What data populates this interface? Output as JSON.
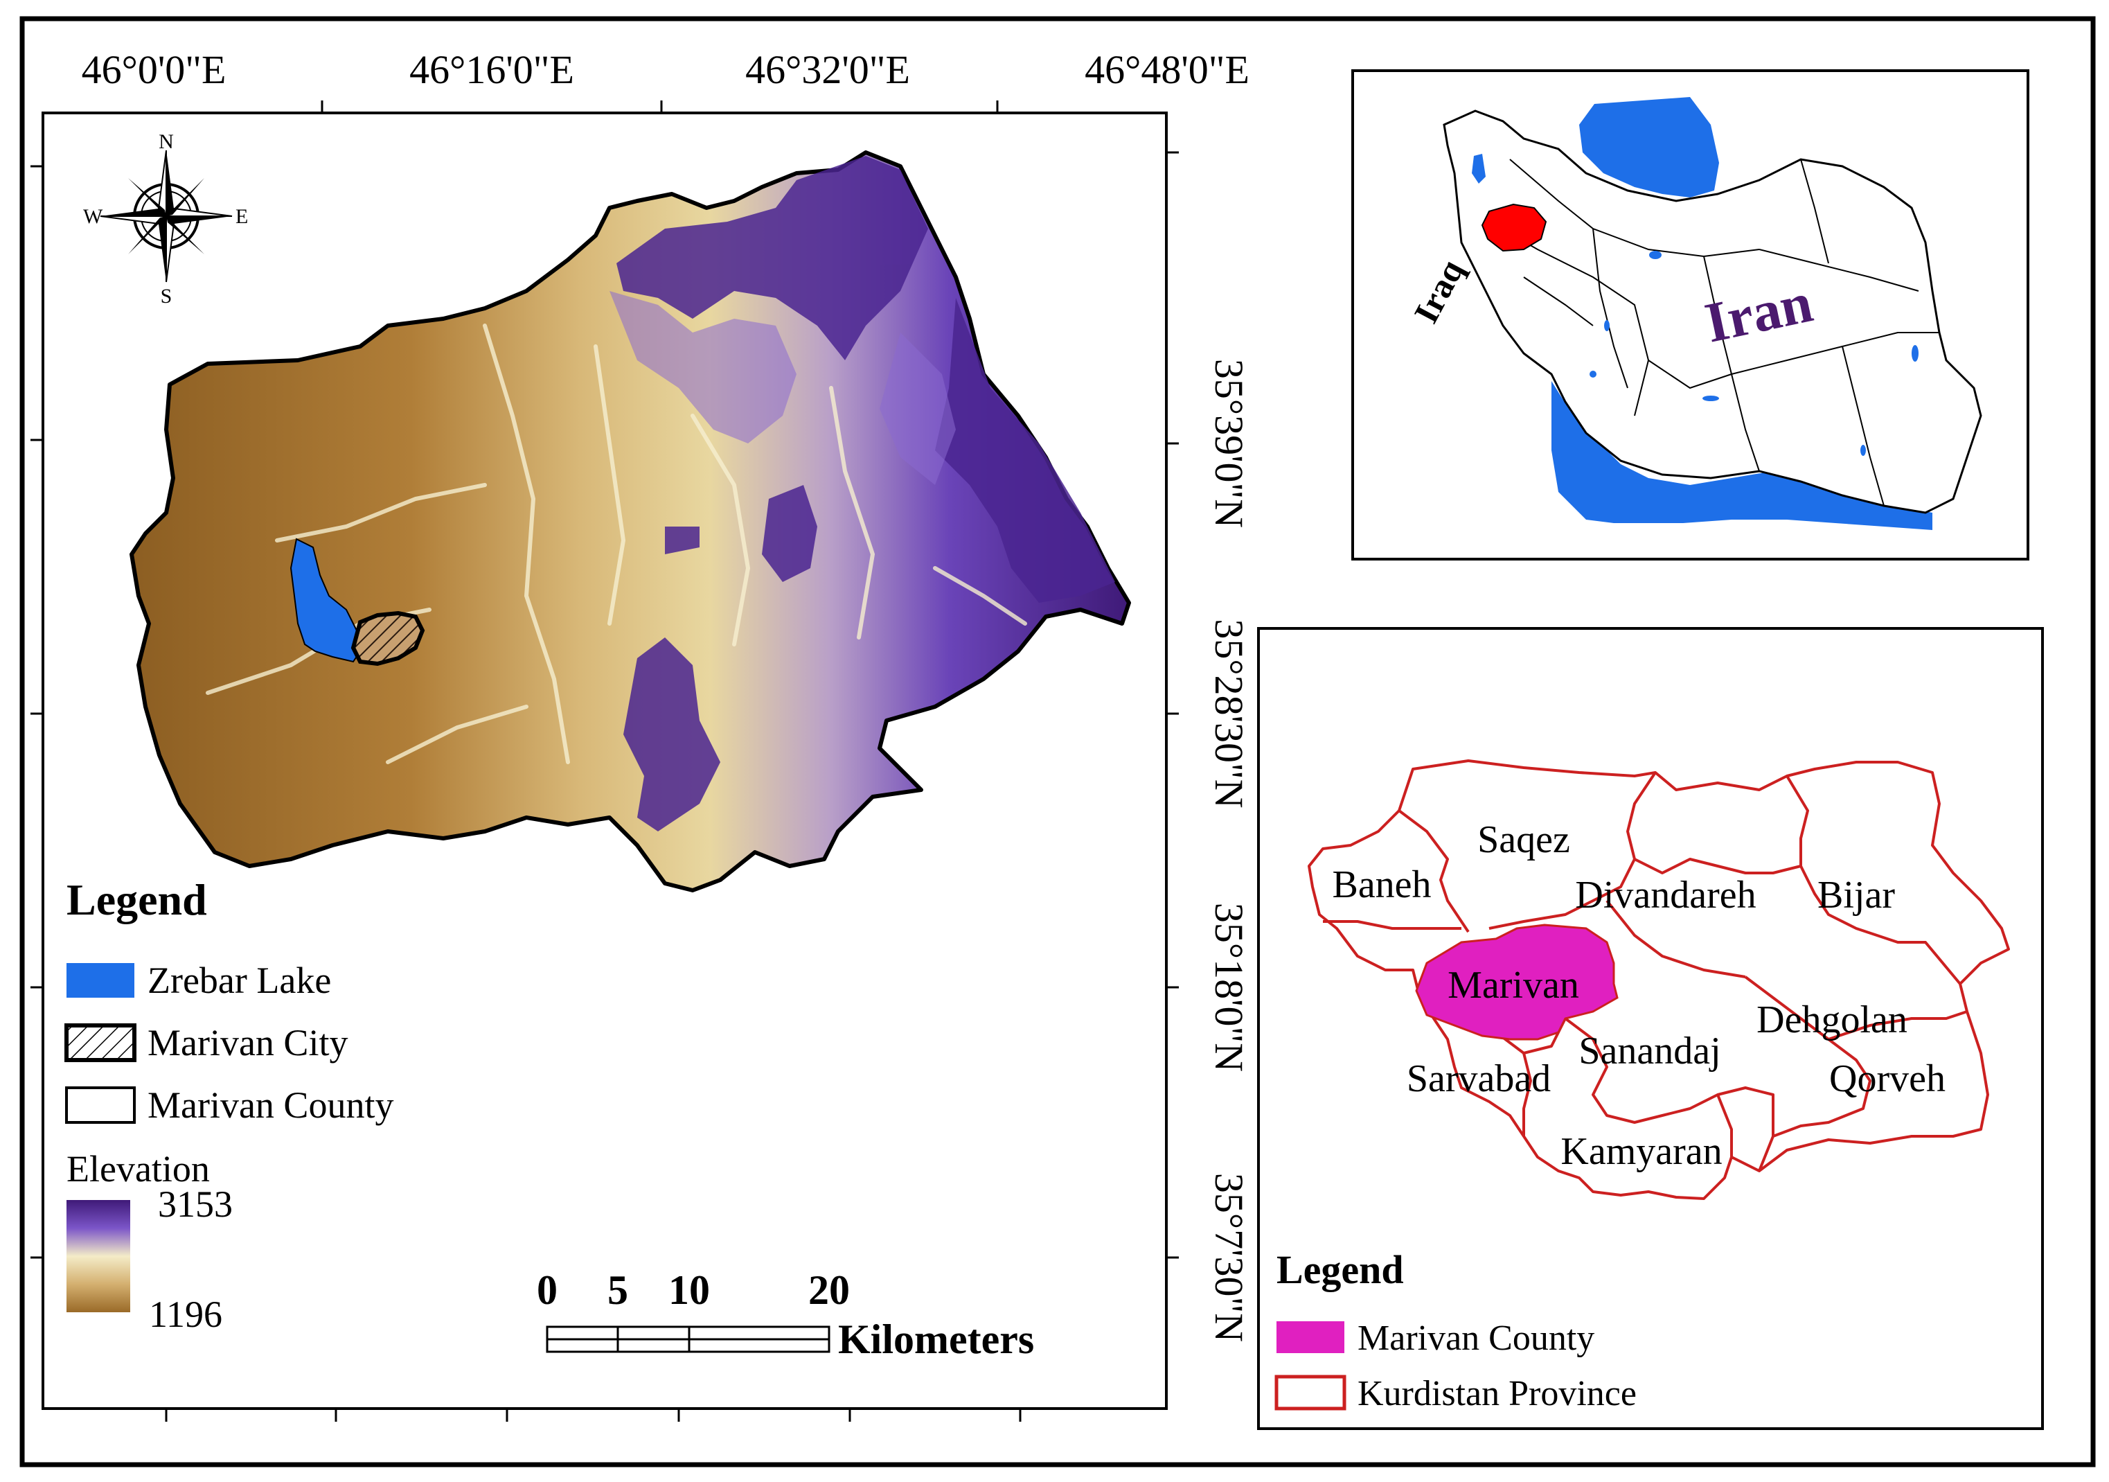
{
  "main_map": {
    "top_longitudes": [
      "46°0'0\"E",
      "46°16'0\"E",
      "46°32'0\"E",
      "46°48'0\"E"
    ],
    "right_latitudes": [
      "35°39'0\"N",
      "35°28'30\"N",
      "35°18'0\"N",
      "35°7'30\"N"
    ],
    "compass": {
      "n": "N",
      "s": "S",
      "e": "E",
      "w": "W"
    },
    "legend": {
      "title": "Legend",
      "items": [
        {
          "label": "Zrebar Lake",
          "color": "#1e6fe8"
        },
        {
          "label": "Marivan City",
          "pattern": "hatched"
        },
        {
          "label": "Marivan County",
          "color": "#ffffff"
        }
      ],
      "elevation_label": "Elevation",
      "elevation_max": "3153",
      "elevation_min": "1196",
      "ramp_colors": [
        "#3f1a78",
        "#7b55c8",
        "#f4ecc8",
        "#d4b070",
        "#9a6a28"
      ]
    },
    "scale_bar": {
      "ticks": [
        "0",
        "5",
        "10",
        "20"
      ],
      "unit": "Kilometers"
    }
  },
  "inset_iran": {
    "country_label": "Iran",
    "neighbor_label": "Iraq",
    "highlight_color": "#ff0000",
    "water_color": "#1e6fe8",
    "label_color": "#4b1a6e"
  },
  "inset_kurdistan": {
    "counties": [
      "Saqez",
      "Baneh",
      "Divandareh",
      "Bijar",
      "Marivan",
      "Dehgolan",
      "Sanandaj",
      "Sarvabad",
      "Qorveh",
      "Kamyaran"
    ],
    "legend": {
      "title": "Legend",
      "items": [
        {
          "label": "Marivan County",
          "color": "#e020c0"
        },
        {
          "label": "Kurdistan Province",
          "color": "#cc2020"
        }
      ]
    }
  }
}
